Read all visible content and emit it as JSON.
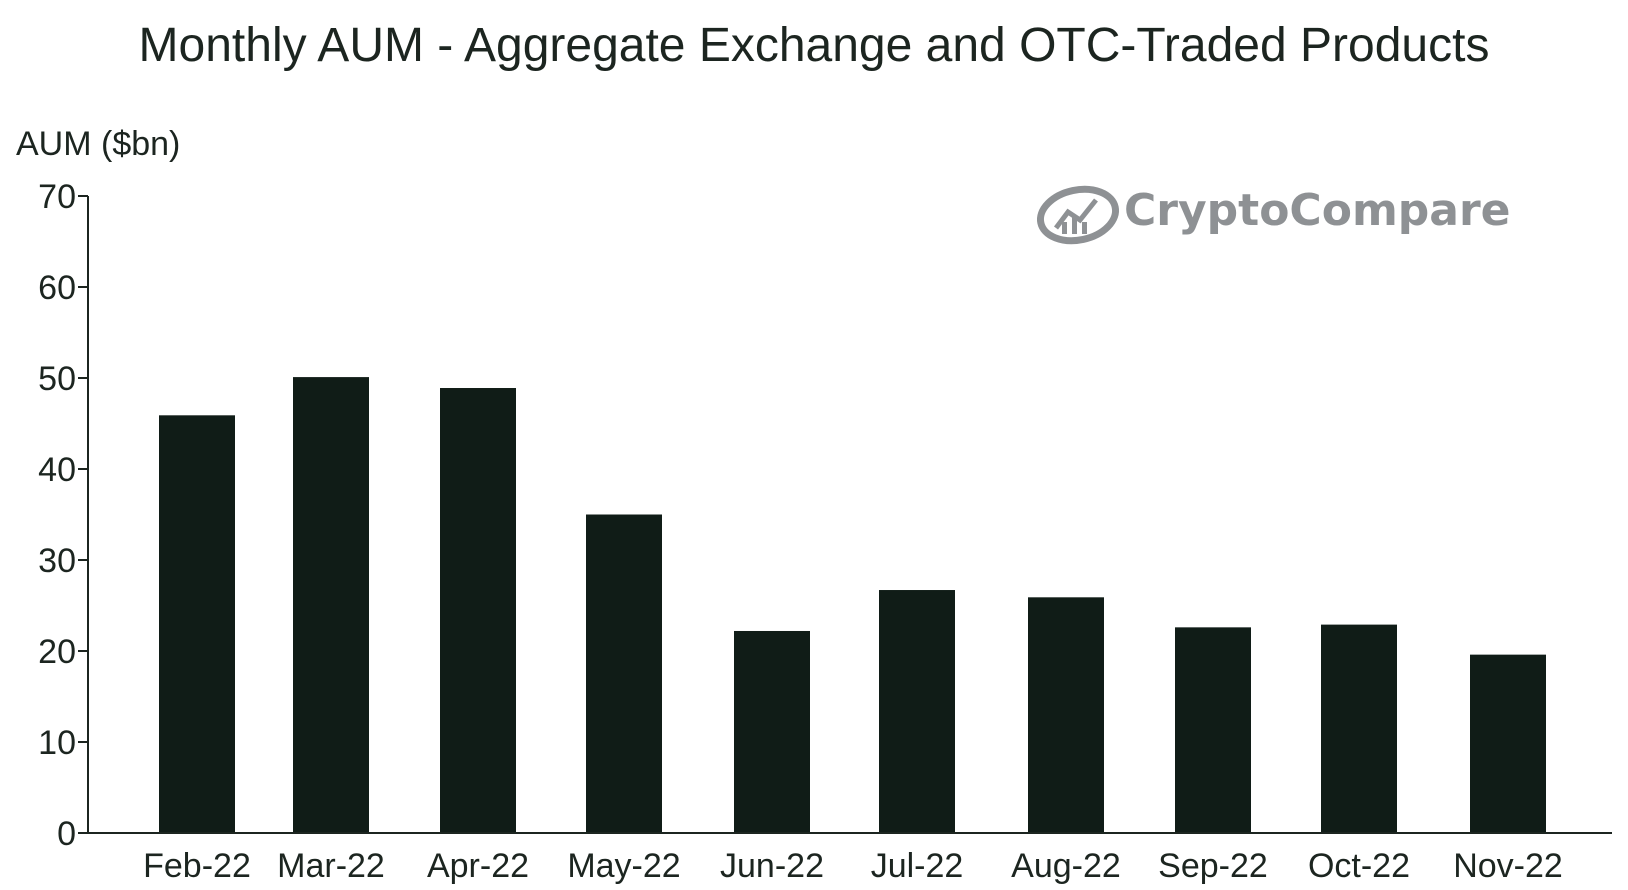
{
  "chart_data": {
    "type": "bar",
    "title": "Monthly AUM - Aggregate Exchange and OTC-Traded Products",
    "ylabel": "AUM ($bn)",
    "xlabel": "",
    "categories": [
      "Feb-22",
      "Mar-22",
      "Apr-22",
      "May-22",
      "Jun-22",
      "Jul-22",
      "Aug-22",
      "Sep-22",
      "Oct-22",
      "Nov-22"
    ],
    "values": [
      45.9,
      50.1,
      48.9,
      35.0,
      22.2,
      26.7,
      25.9,
      22.6,
      22.9,
      19.6
    ],
    "ylim": [
      0,
      70
    ],
    "yticks": [
      0,
      10,
      20,
      30,
      40,
      50,
      60,
      70
    ],
    "grid": false,
    "bar_color": "#101c17",
    "axis_color": "#1c2520"
  },
  "watermark": {
    "text": "CryptoCompare",
    "icon": "crypto-compare-logo-icon",
    "color": "#8e9194"
  }
}
